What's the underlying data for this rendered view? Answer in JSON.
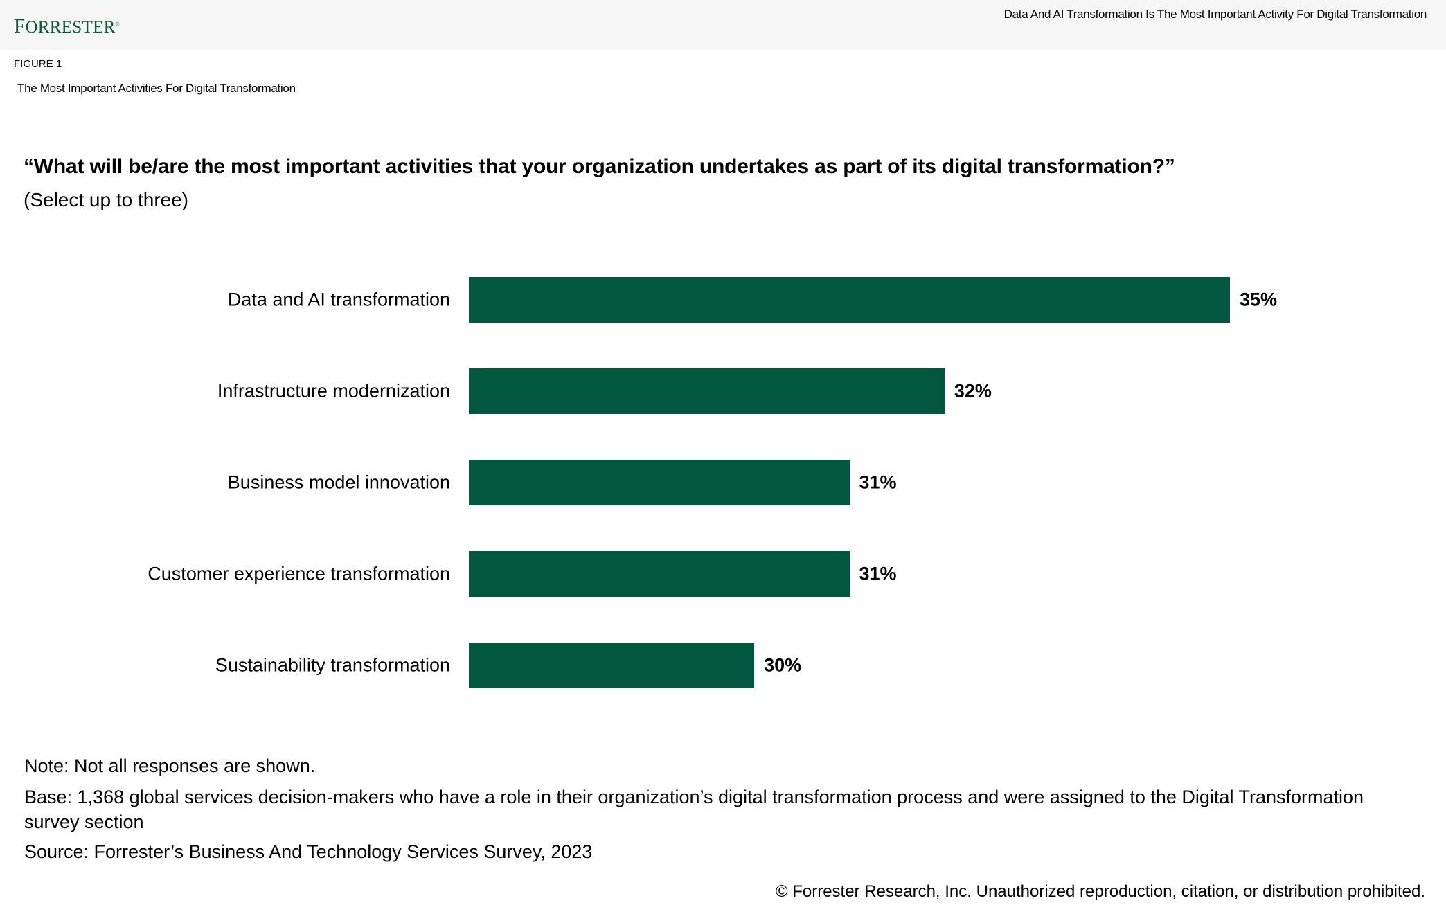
{
  "header": {
    "logo": "Forrester",
    "title": "Data And AI Transformation Is The Most Important Activity For Digital Transformation"
  },
  "figure_label": "FIGURE 1",
  "subtitle": "The Most Important Activities For Digital Transformation",
  "chart_data": {
    "type": "bar",
    "orientation": "horizontal",
    "title": "“What will be/are the most important activities that your organization undertakes as part of its digital transformation?”",
    "subtitle": "(Select up to three)",
    "categories": [
      "Data and AI transformation",
      "Infrastructure modernization",
      "Business model innovation",
      "Customer experience transformation",
      "Sustainability transformation"
    ],
    "values": [
      35,
      32,
      31,
      31,
      30
    ],
    "data_labels": [
      "35%",
      "32%",
      "31%",
      "31%",
      "30%"
    ],
    "xlim": [
      27,
      35
    ],
    "grid": false,
    "bar_color": "#02573f"
  },
  "notes": {
    "note": "Note: Not all responses are shown.",
    "base": "Base: 1,368 global services decision-makers who have a role in their organization’s digital transformation process and were assigned to the Digital Transformation survey section",
    "source": "Source: Forrester’s Business And Technology Services Survey, 2023"
  },
  "copyright": "© Forrester Research, Inc. Unauthorized reproduction, citation, or distribution prohibited."
}
